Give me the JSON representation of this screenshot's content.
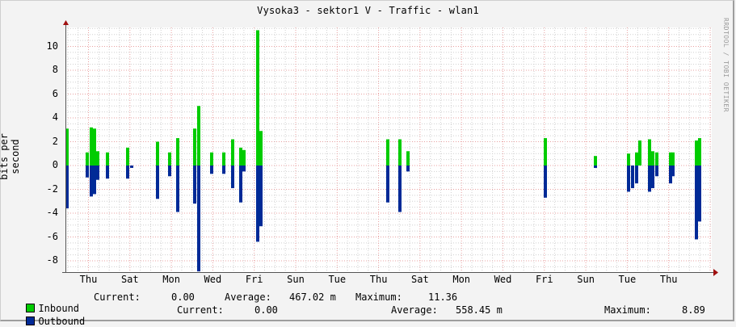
{
  "title": "Vysoka3 - sektor1 V - Traffic - wlan1",
  "watermark": "RRDTOOL / TOBI OETIKER",
  "colors": {
    "inbound": "#00cc00",
    "outbound": "#002a97",
    "grid_major": "#e8a0a0",
    "grid_minor": "#d0d0d0",
    "axis": "#555555",
    "arrow": "#a01010"
  },
  "chart_data": {
    "type": "bar",
    "title": "Vysoka3 - sektor1 V - Traffic - wlan1",
    "xlabel": "",
    "ylabel": "bits per second",
    "ylim": [
      -9,
      11.5
    ],
    "yticks": [
      10,
      8,
      6,
      4,
      2,
      0,
      -2,
      -4,
      -6,
      -8
    ],
    "xticks": [
      "Thu",
      "Sat",
      "Mon",
      "Wed",
      "Fri",
      "Sun",
      "Tue",
      "Thu",
      "Sat",
      "Mon",
      "Wed",
      "Fri",
      "Sun",
      "Tue",
      "Thu"
    ],
    "grid": true,
    "legend_position": "bottom",
    "series": [
      {
        "name": "Inbound",
        "color": "#00cc00",
        "direction": "up",
        "points": [
          [
            0,
            3.1
          ],
          [
            25,
            1.1
          ],
          [
            30,
            3.2
          ],
          [
            34,
            3.1
          ],
          [
            38,
            1.2
          ],
          [
            50,
            1.1
          ],
          [
            75,
            1.5
          ],
          [
            112,
            2.0
          ],
          [
            127,
            1.1
          ],
          [
            137,
            2.3
          ],
          [
            158,
            3.1
          ],
          [
            163,
            5.0
          ],
          [
            179,
            1.1
          ],
          [
            194,
            1.1
          ],
          [
            205,
            2.2
          ],
          [
            215,
            1.5
          ],
          [
            219,
            1.3
          ],
          [
            236,
            11.36
          ],
          [
            240,
            2.9
          ],
          [
            397,
            2.2
          ],
          [
            412,
            2.2
          ],
          [
            422,
            1.2
          ],
          [
            592,
            2.3
          ],
          [
            654,
            0.8
          ],
          [
            695,
            1.0
          ],
          [
            705,
            1.1
          ],
          [
            709,
            2.1
          ],
          [
            721,
            2.2
          ],
          [
            725,
            1.2
          ],
          [
            730,
            1.1
          ],
          [
            747,
            1.1
          ],
          [
            750,
            1.1
          ],
          [
            779,
            2.1
          ],
          [
            783,
            2.3
          ]
        ]
      },
      {
        "name": "Outbound",
        "color": "#002a97",
        "direction": "down",
        "points": [
          [
            0,
            3.6
          ],
          [
            25,
            1.0
          ],
          [
            30,
            2.6
          ],
          [
            34,
            2.4
          ],
          [
            38,
            1.2
          ],
          [
            50,
            1.1
          ],
          [
            75,
            1.1
          ],
          [
            80,
            0.2
          ],
          [
            112,
            2.8
          ],
          [
            127,
            0.9
          ],
          [
            137,
            3.9
          ],
          [
            158,
            3.2
          ],
          [
            163,
            8.89
          ],
          [
            179,
            0.7
          ],
          [
            194,
            0.7
          ],
          [
            205,
            1.9
          ],
          [
            215,
            3.1
          ],
          [
            219,
            0.5
          ],
          [
            236,
            6.4
          ],
          [
            240,
            5.1
          ],
          [
            397,
            3.1
          ],
          [
            412,
            3.9
          ],
          [
            422,
            0.5
          ],
          [
            592,
            2.7
          ],
          [
            654,
            0.2
          ],
          [
            695,
            2.2
          ],
          [
            700,
            1.9
          ],
          [
            705,
            1.5
          ],
          [
            721,
            2.2
          ],
          [
            725,
            1.9
          ],
          [
            730,
            0.9
          ],
          [
            747,
            1.5
          ],
          [
            750,
            0.9
          ],
          [
            779,
            6.2
          ],
          [
            783,
            4.7
          ]
        ]
      }
    ],
    "legend": [
      {
        "name": "Inbound",
        "current": "0.00",
        "average": "467.02 m",
        "maximum": "11.36"
      },
      {
        "name": "Outbound",
        "current": "0.00",
        "average": "558.45 m",
        "maximum": "8.89"
      }
    ]
  },
  "legend": {
    "inbound": {
      "label": "Inbound",
      "current_label": "Current:",
      "current": "0.00",
      "average_label": "Average:",
      "average": "467.02 m",
      "maximum_label": "Maximum:",
      "maximum": "11.36"
    },
    "outbound": {
      "label": "Outbound",
      "current_label": "Current:",
      "current": "0.00",
      "average_label": "Average:",
      "average": "558.45 m",
      "maximum_label": "Maximum:",
      "maximum": "8.89"
    }
  }
}
